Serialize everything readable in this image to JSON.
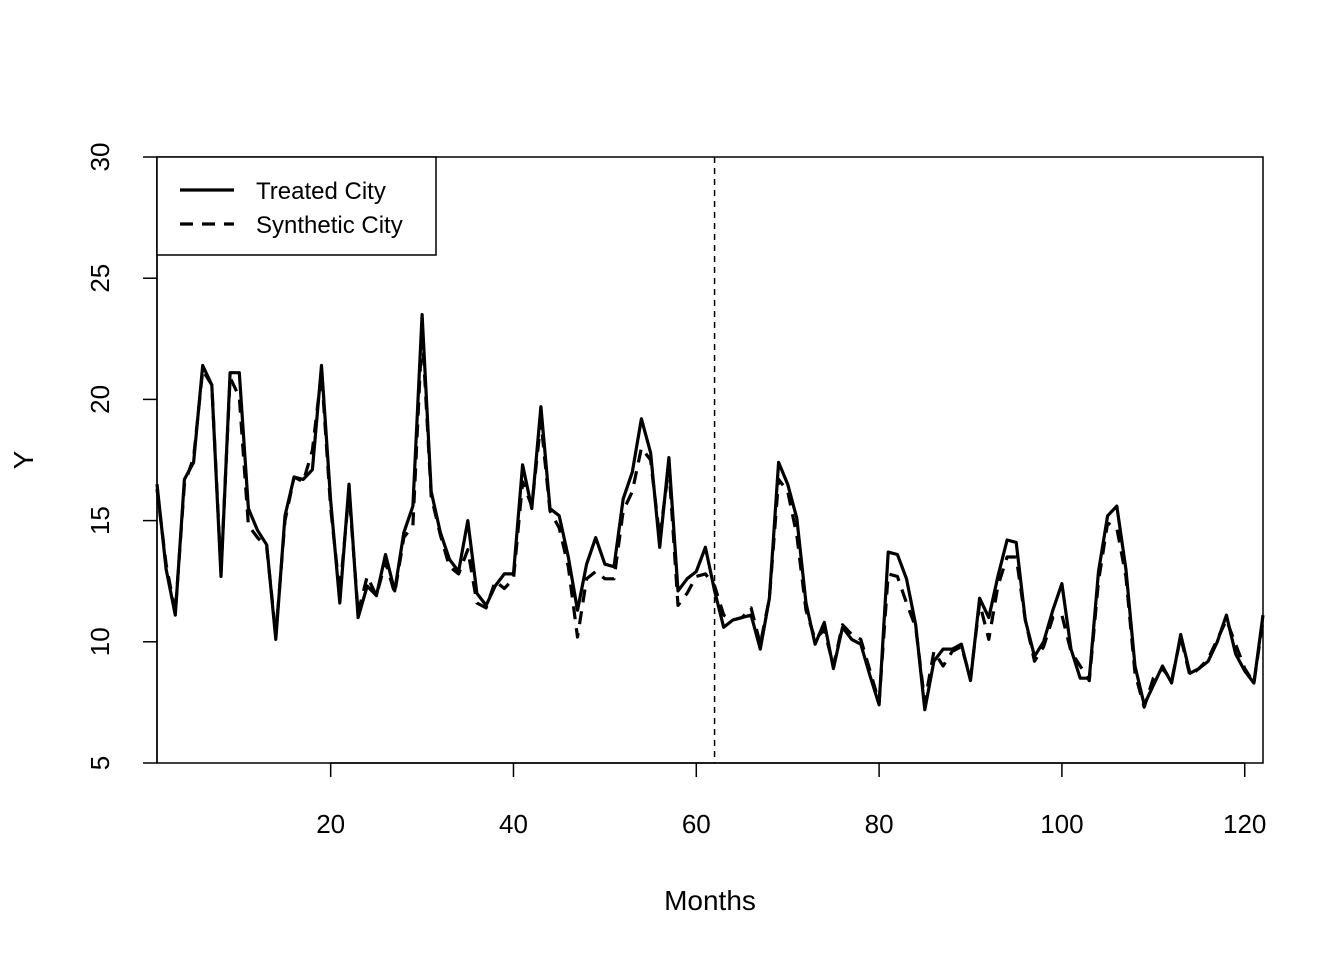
{
  "chart_data": {
    "type": "line",
    "title": "",
    "xlabel": "Months",
    "ylabel": "Y",
    "xlim": [
      1,
      122
    ],
    "ylim": [
      5,
      30
    ],
    "x_ticks": [
      20,
      40,
      60,
      80,
      100,
      120
    ],
    "y_ticks": [
      5,
      10,
      15,
      20,
      25,
      30
    ],
    "vline": 62,
    "legend": {
      "placement": "top-left",
      "entries": [
        {
          "label": "Treated City",
          "style": "solid"
        },
        {
          "label": "Synthetic City",
          "style": "dashed"
        }
      ]
    },
    "grid": false,
    "color": "#000000",
    "series": [
      {
        "name": "Treated City",
        "style": "solid",
        "x": [
          1,
          2,
          3,
          4,
          5,
          6,
          7,
          8,
          9,
          10,
          11,
          12,
          13,
          14,
          15,
          16,
          17,
          18,
          19,
          20,
          21,
          22,
          23,
          24,
          25,
          26,
          27,
          28,
          29,
          30,
          31,
          32,
          33,
          34,
          35,
          36,
          37,
          38,
          39,
          40,
          41,
          42,
          43,
          44,
          45,
          46,
          47,
          48,
          49,
          50,
          51,
          52,
          53,
          54,
          55,
          56,
          57,
          58,
          59,
          60,
          61,
          62,
          63,
          64,
          65,
          66,
          67,
          68,
          69,
          70,
          71,
          72,
          73,
          74,
          75,
          76,
          77,
          78,
          79,
          80,
          81,
          82,
          83,
          84,
          85,
          86,
          87,
          88,
          89,
          90,
          91,
          92,
          93,
          94,
          95,
          96,
          97,
          98,
          99,
          100,
          101,
          102,
          103,
          104,
          105,
          106,
          107,
          108,
          109,
          110,
          111,
          112,
          113,
          114,
          115,
          116,
          117,
          118,
          119,
          120,
          121,
          122
        ],
        "values": [
          16.5,
          13.0,
          11.1,
          16.7,
          17.4,
          21.4,
          20.6,
          12.7,
          21.1,
          21.1,
          15.5,
          14.6,
          14.0,
          10.1,
          15.2,
          16.8,
          16.7,
          17.1,
          21.4,
          15.8,
          11.6,
          16.5,
          11.0,
          12.3,
          11.9,
          13.6,
          12.1,
          14.5,
          15.6,
          23.5,
          16.2,
          14.5,
          13.4,
          12.9,
          15.0,
          12.0,
          11.5,
          12.3,
          12.8,
          12.8,
          17.3,
          15.5,
          19.7,
          15.5,
          15.2,
          13.5,
          11.3,
          13.2,
          14.3,
          13.2,
          13.1,
          15.9,
          17.0,
          19.2,
          17.8,
          13.9,
          17.6,
          12.1,
          12.6,
          12.9,
          13.9,
          12.1,
          10.6,
          10.9,
          11.0,
          11.1,
          9.7,
          11.8,
          17.4,
          16.5,
          15.1,
          11.6,
          9.9,
          10.8,
          8.9,
          10.6,
          10.1,
          9.9,
          8.6,
          7.4,
          13.7,
          13.6,
          12.6,
          10.7,
          7.2,
          9.2,
          9.7,
          9.7,
          9.9,
          8.4,
          11.8,
          11.0,
          12.7,
          14.2,
          14.1,
          10.9,
          9.4,
          10.0,
          11.3,
          12.4,
          9.7,
          8.5,
          8.5,
          12.9,
          15.2,
          15.6,
          13.0,
          9.0,
          7.4,
          8.2,
          9.0,
          8.3,
          10.3,
          8.7,
          8.9,
          9.2,
          10.0,
          11.1,
          9.5,
          8.8,
          8.3,
          11.1
        ]
      },
      {
        "name": "Synthetic City",
        "style": "dashed",
        "x": [
          1,
          2,
          3,
          4,
          5,
          6,
          7,
          8,
          9,
          10,
          11,
          12,
          13,
          14,
          15,
          16,
          17,
          18,
          19,
          20,
          21,
          22,
          23,
          24,
          25,
          26,
          27,
          28,
          29,
          30,
          31,
          32,
          33,
          34,
          35,
          36,
          37,
          38,
          39,
          40,
          41,
          42,
          43,
          44,
          45,
          46,
          47,
          48,
          49,
          50,
          51,
          52,
          53,
          54,
          55,
          56,
          57,
          58,
          59,
          60,
          61,
          62,
          63,
          64,
          65,
          66,
          67,
          68,
          69,
          70,
          71,
          72,
          73,
          74,
          75,
          76,
          77,
          78,
          79,
          80,
          81,
          82,
          83,
          84,
          85,
          86,
          87,
          88,
          89,
          90,
          91,
          92,
          93,
          94,
          95,
          96,
          97,
          98,
          99,
          100,
          101,
          102,
          103,
          104,
          105,
          106,
          107,
          108,
          109,
          110,
          111,
          112,
          113,
          114,
          115,
          116,
          117,
          118,
          119,
          120,
          121,
          122
        ],
        "values": [
          16.3,
          13.2,
          11.2,
          16.5,
          17.6,
          21.2,
          20.6,
          12.9,
          20.9,
          20.1,
          14.8,
          14.3,
          13.9,
          10.3,
          15.0,
          16.8,
          16.6,
          17.9,
          21.1,
          15.5,
          12.0,
          16.2,
          11.2,
          12.7,
          11.9,
          13.3,
          12.0,
          14.3,
          14.8,
          22.9,
          16.0,
          14.4,
          13.1,
          12.8,
          13.8,
          11.6,
          11.4,
          12.5,
          12.2,
          12.6,
          16.6,
          15.6,
          19.1,
          15.4,
          14.7,
          13.1,
          10.2,
          12.6,
          12.9,
          12.6,
          12.6,
          15.4,
          16.2,
          18.0,
          17.5,
          14.3,
          17.2,
          11.5,
          12.0,
          12.7,
          12.8,
          12.3,
          11.1,
          10.9,
          11.0,
          11.4,
          9.9,
          11.8,
          16.7,
          16.2,
          14.4,
          11.3,
          10.1,
          10.5,
          9.0,
          10.7,
          10.3,
          10.1,
          8.8,
          7.5,
          12.8,
          12.7,
          11.6,
          10.6,
          7.5,
          9.6,
          9.0,
          9.6,
          9.8,
          8.5,
          11.6,
          10.1,
          12.3,
          13.5,
          13.5,
          10.9,
          9.2,
          9.8,
          11.0,
          11.1,
          9.6,
          9.0,
          8.4,
          12.5,
          14.9,
          14.7,
          12.7,
          8.7,
          7.3,
          8.5,
          8.9,
          8.4,
          10.2,
          8.6,
          8.9,
          9.3,
          10.1,
          10.9,
          9.9,
          8.9,
          8.3,
          10.9
        ]
      }
    ]
  }
}
